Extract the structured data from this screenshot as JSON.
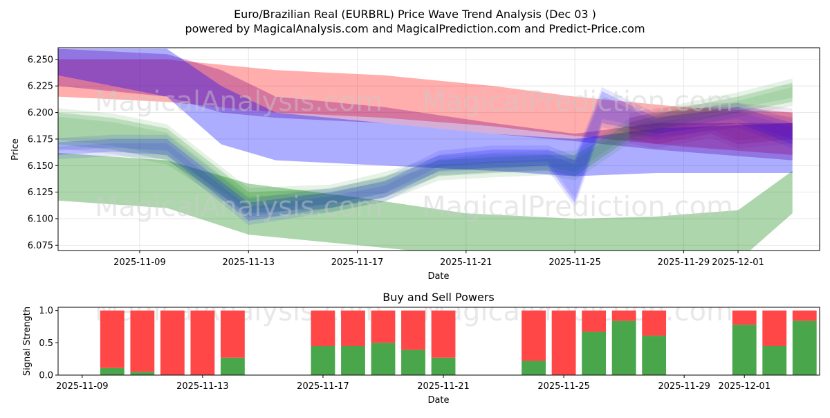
{
  "chart_data": [
    {
      "type": "area",
      "title": "Euro/Brazilian Real (EURBRL) Price Wave Trend Analysis (Dec 03 )",
      "subtitle": "powered by MagicalAnalysis.com and MagicalPrediction.com and Predict-Price.com",
      "xlabel": "Date",
      "ylabel": "Price",
      "ylim": [
        6.07,
        6.261
      ],
      "xlim": [
        "2025-11-06",
        "2025-12-04"
      ],
      "y_ticks": [
        "6.075",
        "6.100",
        "6.125",
        "6.150",
        "6.175",
        "6.200",
        "6.225",
        "6.250"
      ],
      "x_ticks": [
        "2025-11-09",
        "2025-11-13",
        "2025-11-17",
        "2025-11-21",
        "2025-11-25",
        "2025-11-29",
        "2025-12-01"
      ],
      "grid": true,
      "watermarks": [
        "MagicalAnalysis.com",
        "MagicalPrediction.com",
        "MagicalAnalysis.com",
        "MagicalPrediction.com"
      ],
      "series": [
        {
          "name": "red band",
          "color": "#ff0000",
          "x": [
            "2025-11-06",
            "2025-11-10",
            "2025-11-14",
            "2025-11-18",
            "2025-11-22",
            "2025-11-25",
            "2025-11-29",
            "2025-12-03"
          ],
          "upper": [
            6.25,
            6.25,
            6.24,
            6.235,
            6.225,
            6.215,
            6.205,
            6.2
          ],
          "lower": [
            6.215,
            6.21,
            6.2,
            6.195,
            6.187,
            6.178,
            6.168,
            6.16
          ]
        },
        {
          "name": "purple band",
          "color": "#800080",
          "x": [
            "2025-11-06",
            "2025-11-10",
            "2025-11-12",
            "2025-11-14",
            "2025-11-18",
            "2025-11-22",
            "2025-11-25",
            "2025-11-28",
            "2025-12-03"
          ],
          "upper": [
            6.26,
            6.255,
            6.24,
            6.215,
            6.205,
            6.19,
            6.18,
            6.19,
            6.19
          ],
          "lower": [
            6.225,
            6.215,
            6.2,
            6.195,
            6.19,
            6.18,
            6.173,
            6.165,
            6.155
          ]
        },
        {
          "name": "blue band",
          "color": "#0000ff",
          "x": [
            "2025-11-06",
            "2025-11-10",
            "2025-11-12",
            "2025-11-14",
            "2025-11-18",
            "2025-11-22",
            "2025-11-25",
            "2025-11-28",
            "2025-12-03"
          ],
          "upper": [
            6.26,
            6.26,
            6.225,
            6.2,
            6.19,
            6.18,
            6.175,
            6.185,
            6.19
          ],
          "lower": [
            6.235,
            6.215,
            6.17,
            6.155,
            6.15,
            6.145,
            6.14,
            6.143,
            6.143
          ]
        },
        {
          "name": "green band",
          "color": "#008000",
          "x": [
            "2025-11-06",
            "2025-11-10",
            "2025-11-13",
            "2025-11-17",
            "2025-11-21",
            "2025-11-25",
            "2025-11-28",
            "2025-12-01",
            "2025-12-03"
          ],
          "upper": [
            6.162,
            6.155,
            6.133,
            6.12,
            6.105,
            6.1,
            6.102,
            6.108,
            6.145
          ],
          "lower": [
            6.117,
            6.11,
            6.085,
            6.075,
            6.065,
            6.06,
            6.058,
            6.06,
            6.105
          ]
        },
        {
          "name": "green wave",
          "color": "#008000",
          "x": [
            "2025-11-06",
            "2025-11-08",
            "2025-11-10",
            "2025-11-13",
            "2025-11-16",
            "2025-11-18",
            "2025-11-20",
            "2025-11-22",
            "2025-11-24",
            "2025-11-25",
            "2025-11-27",
            "2025-11-29",
            "2025-12-01",
            "2025-12-03"
          ],
          "upper": [
            6.2,
            6.195,
            6.185,
            6.125,
            6.128,
            6.14,
            6.155,
            6.158,
            6.16,
            6.16,
            6.19,
            6.205,
            6.215,
            6.228
          ],
          "lower": [
            6.17,
            6.165,
            6.155,
            6.105,
            6.11,
            6.12,
            6.14,
            6.143,
            6.145,
            6.14,
            6.175,
            6.19,
            6.2,
            6.21
          ]
        },
        {
          "name": "blue wave",
          "color": "#0000ff",
          "x": [
            "2025-11-06",
            "2025-11-08",
            "2025-11-10",
            "2025-11-13",
            "2025-11-16",
            "2025-11-18",
            "2025-11-20",
            "2025-11-22",
            "2025-11-24",
            "2025-11-25",
            "2025-11-26",
            "2025-11-28",
            "2025-12-01",
            "2025-12-03"
          ],
          "upper": [
            6.172,
            6.175,
            6.175,
            6.115,
            6.125,
            6.135,
            6.16,
            6.165,
            6.165,
            6.155,
            6.22,
            6.195,
            6.205,
            6.19
          ],
          "lower": [
            6.16,
            6.163,
            6.16,
            6.098,
            6.11,
            6.12,
            6.145,
            6.148,
            6.15,
            6.115,
            6.19,
            6.18,
            6.19,
            6.17
          ]
        },
        {
          "name": "purple wave",
          "color": "#800080",
          "x": [
            "2025-11-27",
            "2025-11-28",
            "2025-11-30",
            "2025-12-01",
            "2025-12-03"
          ],
          "upper": [
            6.195,
            6.2,
            6.205,
            6.205,
            6.2
          ],
          "lower": [
            6.175,
            6.17,
            6.18,
            6.17,
            6.175
          ]
        }
      ]
    },
    {
      "type": "bar",
      "title": "Buy and Sell Powers",
      "xlabel": "Date",
      "ylabel": "Signal Strength",
      "ylim": [
        0,
        1.05
      ],
      "y_ticks": [
        "0.0",
        "0.5",
        "1.0"
      ],
      "x_ticks": [
        "2025-11-09",
        "2025-11-13",
        "2025-11-17",
        "2025-11-21",
        "2025-11-25",
        "2025-11-29",
        "2025-12-01"
      ],
      "xlim": [
        "2025-11-08.2",
        "2025-12-03.5"
      ],
      "buy_color": "#4aa64a",
      "sell_color": "#ff4747",
      "categories": [
        "2025-11-10",
        "2025-11-11",
        "2025-11-12",
        "2025-11-13",
        "2025-11-14",
        "2025-11-17",
        "2025-11-18",
        "2025-11-19",
        "2025-11-20",
        "2025-11-21",
        "2025-11-24",
        "2025-11-25",
        "2025-11-26",
        "2025-11-27",
        "2025-11-28",
        "2025-12-01",
        "2025-12-02",
        "2025-12-03"
      ],
      "series": [
        {
          "name": "Buy",
          "values": [
            0.11,
            0.05,
            0.0,
            0.0,
            0.27,
            0.45,
            0.45,
            0.5,
            0.39,
            0.27,
            0.22,
            0.0,
            0.67,
            0.84,
            0.61,
            0.78,
            0.45,
            0.84
          ]
        },
        {
          "name": "Sell",
          "values": [
            0.89,
            0.95,
            1.0,
            1.0,
            0.73,
            0.55,
            0.55,
            0.5,
            0.61,
            0.73,
            0.78,
            1.0,
            0.33,
            0.16,
            0.39,
            0.22,
            0.55,
            0.16
          ]
        }
      ]
    }
  ]
}
